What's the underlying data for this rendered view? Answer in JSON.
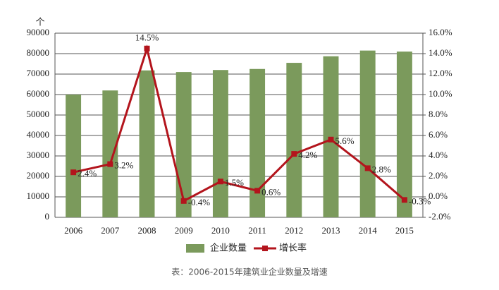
{
  "chart_data": {
    "type": "bar-line",
    "y_unit": "个",
    "caption": "表：2006-2015年建筑业企业数量及增速",
    "categories": [
      "2006",
      "2007",
      "2008",
      "2009",
      "2010",
      "2011",
      "2012",
      "2013",
      "2014",
      "2015"
    ],
    "series": [
      {
        "name": "企业数量",
        "type": "bar",
        "color": "#7b9a5c",
        "values": [
          60000,
          62000,
          71800,
          71000,
          72000,
          72500,
          75500,
          78700,
          81500,
          81000
        ]
      },
      {
        "name": "增长率",
        "type": "line",
        "axis": "y2",
        "color": "#b3141c",
        "values": [
          2.4,
          3.2,
          14.5,
          -0.4,
          1.5,
          0.6,
          4.2,
          5.6,
          2.8,
          -0.3
        ],
        "value_labels": [
          "2.4%",
          "3.2%",
          "14.5%",
          "-0.4%",
          "1.5%",
          "0.6%",
          "4.2%",
          "5.6%",
          "2.8%",
          "-0.3%"
        ]
      }
    ],
    "ylim": [
      0,
      90000
    ],
    "yticks": [
      0,
      10000,
      20000,
      30000,
      40000,
      50000,
      60000,
      70000,
      80000,
      90000
    ],
    "y2lim": [
      -2,
      16
    ],
    "y2ticks": [
      {
        "value": -2,
        "label": "-2.0%"
      },
      {
        "value": 0,
        "label": "0.0%"
      },
      {
        "value": 2,
        "label": "2.0%"
      },
      {
        "value": 4,
        "label": "4.0%"
      },
      {
        "value": 6,
        "label": "6.0%"
      },
      {
        "value": 8,
        "label": "8.0%"
      },
      {
        "value": 10,
        "label": "10.0%"
      },
      {
        "value": 12,
        "label": "12.0%"
      },
      {
        "value": 14,
        "label": "14.0%"
      },
      {
        "value": 16,
        "label": "16.0%"
      }
    ],
    "grid": true
  }
}
